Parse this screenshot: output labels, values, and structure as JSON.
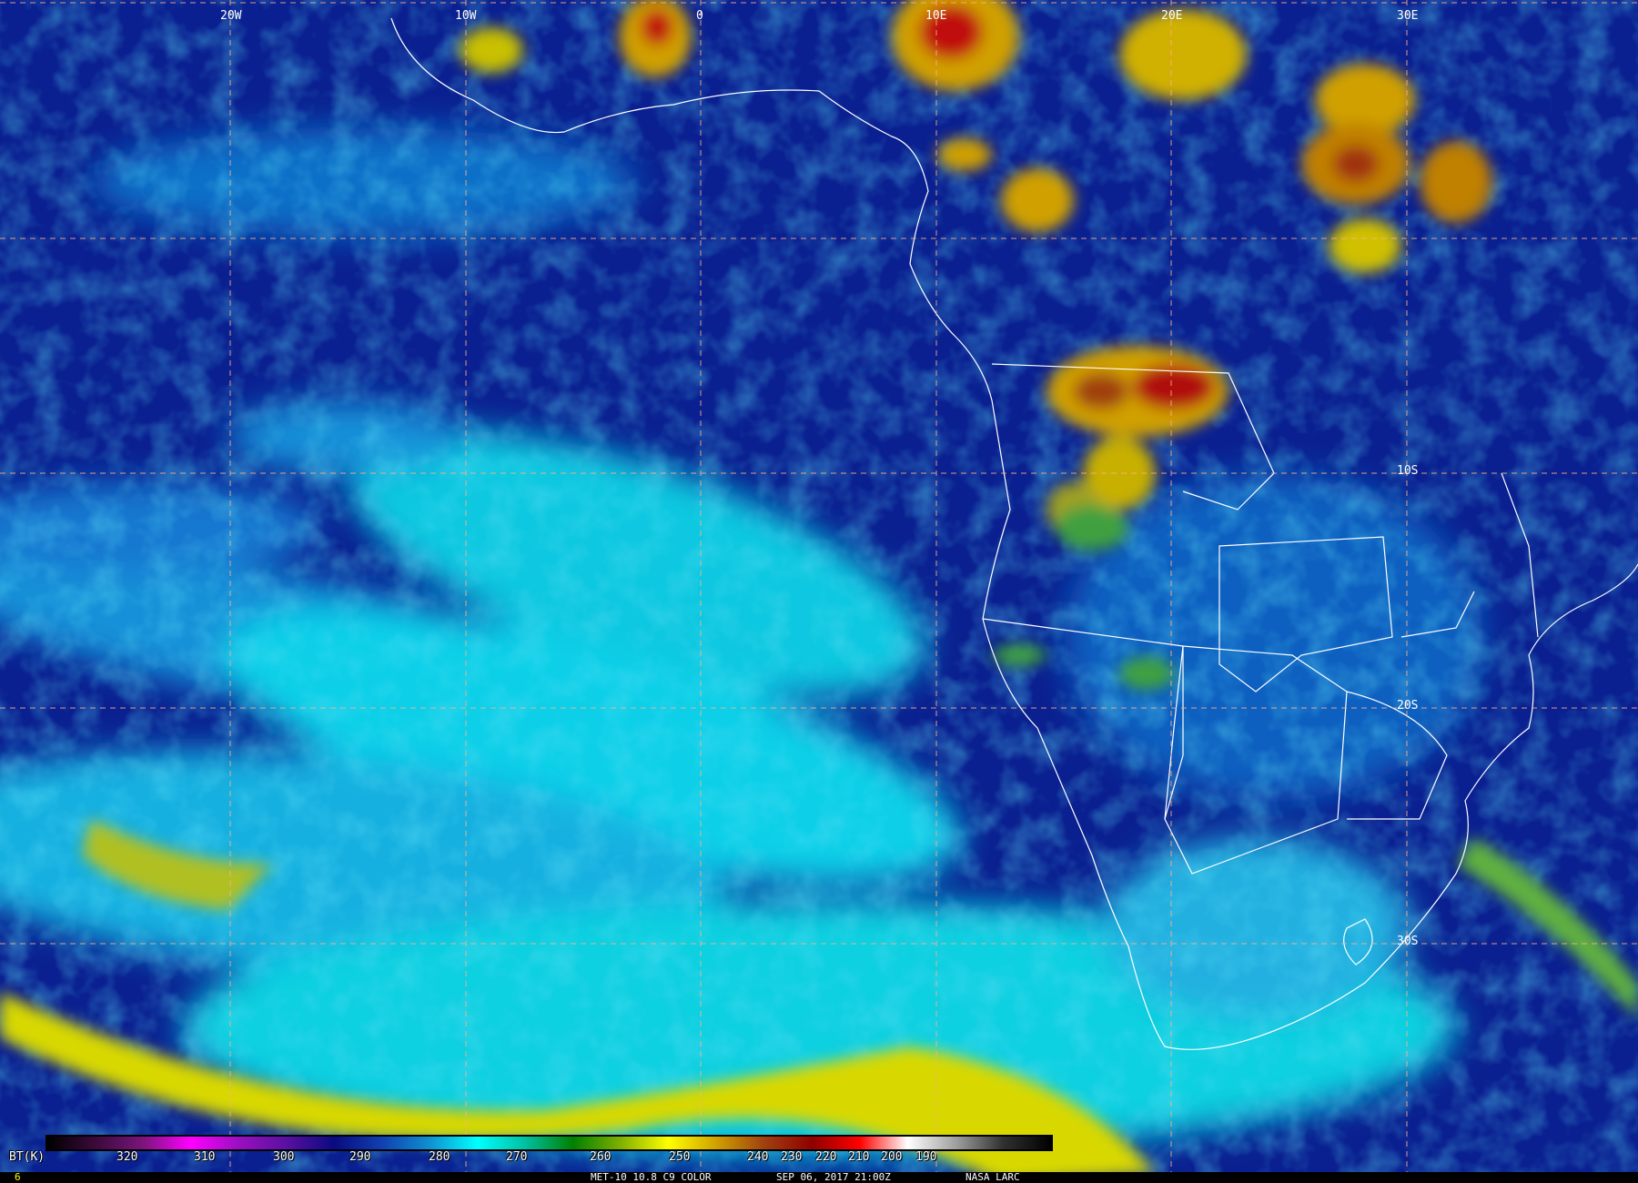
{
  "map": {
    "longitude_labels": [
      "20W",
      "10W",
      "0",
      "10E",
      "20E",
      "30E"
    ],
    "latitude_labels": [
      "10S",
      "20S",
      "30S"
    ],
    "grid_color": "#ffb08c",
    "coastline_color": "#ffffff"
  },
  "colorbar": {
    "label": "BT(K)",
    "ticks": [
      "320",
      "310",
      "300",
      "290",
      "280",
      "270",
      "260",
      "250",
      "240",
      "230",
      "220",
      "210",
      "200",
      "190"
    ],
    "colors": [
      "#000000",
      "#3a0a3a",
      "#7a157a",
      "#ff00ff",
      "#9a10c0",
      "#5a10a0",
      "#0a0a80",
      "#1040b0",
      "#1090d0",
      "#00ffff",
      "#00c0a0",
      "#008000",
      "#80b000",
      "#ffff00",
      "#d0a000",
      "#a04010",
      "#900000",
      "#ff0000",
      "#ffffff",
      "#a0a0a0",
      "#303030",
      "#000000"
    ]
  },
  "footer": {
    "frame": "6",
    "product": "MET-10 10.8 C9 COLOR",
    "datetime": "SEP 06, 2017 21:00Z",
    "credit": "NASA LARC"
  }
}
